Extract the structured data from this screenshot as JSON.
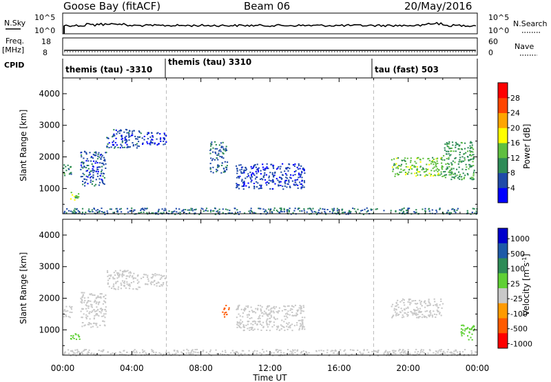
{
  "header": {
    "station": "Goose Bay (fitACF)",
    "beam": "Beam 06",
    "date": "20/May/2016"
  },
  "noise_panel": {
    "left_label": "N.Sky",
    "right_label": "N.Search",
    "scale_top": "10^5",
    "scale_bottom": "10^0"
  },
  "freq_panel": {
    "left_label_line1": "Freq.",
    "left_label_line2": "[MHz]",
    "left_ticks": [
      "18",
      "8"
    ],
    "right_ticks": [
      "60",
      "0"
    ],
    "right_label": "Nave"
  },
  "cpid": {
    "label": "CPID",
    "modes": [
      "themis (tau) -3310",
      "themis (tau) 3310",
      "tau (fast) 503"
    ]
  },
  "colors": {
    "power_scale": [
      "#0000ff",
      "#1f4aa8",
      "#2e8b57",
      "#5fbf3f",
      "#ffff00",
      "#ffa500",
      "#ff4500",
      "#ff0000"
    ],
    "velocity_scale": [
      "#0000cc",
      "#1e5aa8",
      "#2e8b57",
      "#5fd035",
      "#c8c8c8",
      "#ff9a00",
      "#ff5a00",
      "#ff0000"
    ],
    "ground_scatter": "#c0c0c0"
  },
  "chart_data": [
    {
      "type": "heatmap",
      "title": "",
      "ylabel": "Slant Range [km]",
      "ylim": [
        200,
        4500
      ],
      "y_ticks": [
        "1000",
        "2000",
        "3000",
        "4000"
      ],
      "colorbar": {
        "label": "Power [dB]",
        "ticks": [
          "4",
          "8",
          "12",
          "16",
          "20",
          "24",
          "28"
        ],
        "range": [
          0,
          30
        ]
      },
      "regions": [
        {
          "t": [
            0.0,
            0.5
          ],
          "r": [
            1400,
            1800
          ],
          "value": 10
        },
        {
          "t": [
            0.4,
            1.0
          ],
          "r": [
            650,
            900
          ],
          "value": 14
        },
        {
          "t": [
            1.0,
            2.5
          ],
          "r": [
            1100,
            2200
          ],
          "value": 6
        },
        {
          "t": [
            2.5,
            4.5
          ],
          "r": [
            2300,
            2900
          ],
          "value": 6
        },
        {
          "t": [
            4.5,
            6.0
          ],
          "r": [
            2400,
            2800
          ],
          "value": 5
        },
        {
          "t": [
            8.5,
            9.5
          ],
          "r": [
            1500,
            2500
          ],
          "value": 7
        },
        {
          "t": [
            10.0,
            14.0
          ],
          "r": [
            1000,
            1800
          ],
          "value": 5
        },
        {
          "t": [
            19.0,
            22.0
          ],
          "r": [
            1400,
            2000
          ],
          "value": 14
        },
        {
          "t": [
            22.0,
            23.8
          ],
          "r": [
            1300,
            2500
          ],
          "value": 11
        },
        {
          "t": [
            0.0,
            24.0
          ],
          "r": [
            200,
            400
          ],
          "value": 8
        }
      ]
    },
    {
      "type": "heatmap",
      "title": "",
      "xlabel": "Time UT",
      "ylabel": "Slant Range [km]",
      "ylim": [
        200,
        4500
      ],
      "x_ticks": [
        "00:00",
        "04:00",
        "08:00",
        "12:00",
        "16:00",
        "20:00",
        "00:00"
      ],
      "y_ticks": [
        "1000",
        "2000",
        "3000",
        "4000"
      ],
      "colorbar": {
        "label": "Velocity [m s^-1]",
        "ticks": [
          "1000",
          "500",
          "100",
          "25",
          "-25",
          "-100",
          "-500",
          "-1000"
        ]
      },
      "regions": [
        {
          "t": [
            0.0,
            0.5
          ],
          "r": [
            1400,
            1800
          ],
          "value": 0
        },
        {
          "t": [
            0.4,
            1.0
          ],
          "r": [
            650,
            900
          ],
          "value": 80
        },
        {
          "t": [
            1.0,
            2.5
          ],
          "r": [
            1100,
            2200
          ],
          "value": 0
        },
        {
          "t": [
            2.5,
            4.5
          ],
          "r": [
            2300,
            2900
          ],
          "value": 0
        },
        {
          "t": [
            4.5,
            6.0
          ],
          "r": [
            2400,
            2800
          ],
          "value": 0
        },
        {
          "t": [
            9.2,
            9.6
          ],
          "r": [
            1400,
            1800
          ],
          "value": -200
        },
        {
          "t": [
            10.0,
            14.0
          ],
          "r": [
            1000,
            1800
          ],
          "value": 0
        },
        {
          "t": [
            19.0,
            22.0
          ],
          "r": [
            1400,
            2000
          ],
          "value": 0
        },
        {
          "t": [
            23.0,
            23.8
          ],
          "r": [
            700,
            1200
          ],
          "value": 80
        },
        {
          "t": [
            0.0,
            24.0
          ],
          "r": [
            200,
            400
          ],
          "value": 0
        }
      ]
    }
  ]
}
